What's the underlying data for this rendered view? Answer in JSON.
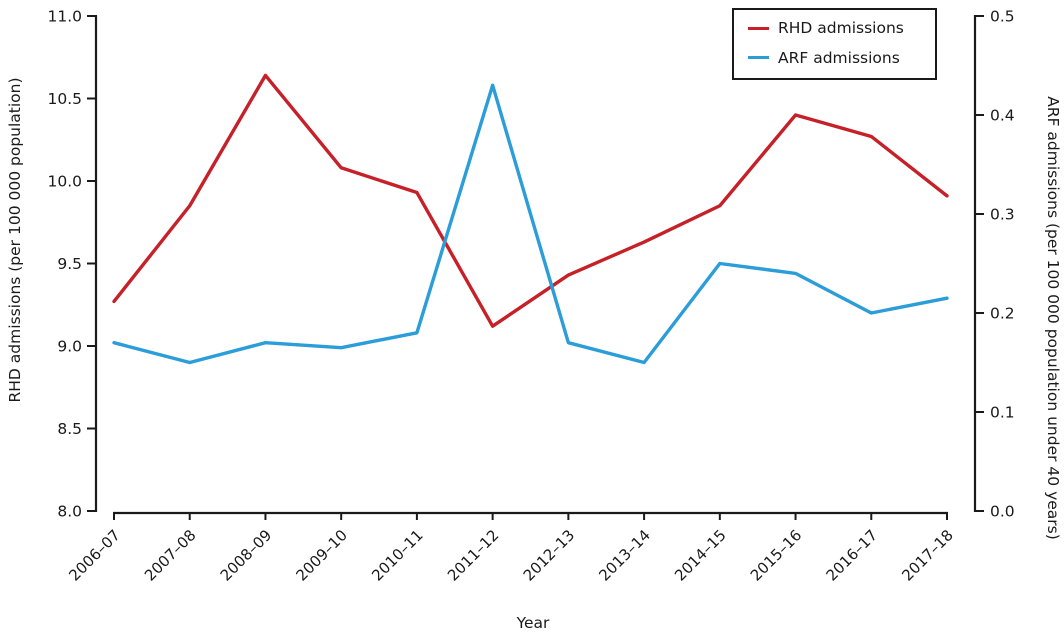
{
  "chart_data": {
    "type": "line",
    "title": "",
    "xlabel": "Year",
    "x": [
      "2006–07",
      "2007–08",
      "2008–09",
      "2009–10",
      "2010–11",
      "2011–12",
      "2012–13",
      "2013–14",
      "2014–15",
      "2015–16",
      "2016–17",
      "2017–18"
    ],
    "y_left": {
      "label": "RHD admissions (per 100 000 population)",
      "min": 8.0,
      "max": 11.0,
      "ticks": [
        8.0,
        8.5,
        9.0,
        9.5,
        10.0,
        10.5,
        11.0
      ],
      "tick_decimals": 1
    },
    "y_right": {
      "label": "ARF admissions (per 100 000 population under 40 years)",
      "min": 0.0,
      "max": 0.5,
      "ticks": [
        0.0,
        0.1,
        0.2,
        0.3,
        0.4,
        0.5
      ],
      "tick_decimals": 1
    },
    "series": [
      {
        "name": "RHD admissions",
        "axis": "left",
        "color": "#c62028",
        "values": [
          9.27,
          9.85,
          10.64,
          10.08,
          9.93,
          9.12,
          9.43,
          9.63,
          9.85,
          10.4,
          10.27,
          9.91
        ]
      },
      {
        "name": "ARF admissions",
        "axis": "right",
        "color": "#2b9dd8",
        "values": [
          0.17,
          0.15,
          0.17,
          0.165,
          0.18,
          0.43,
          0.17,
          0.15,
          0.25,
          0.24,
          0.2,
          0.215
        ]
      }
    ],
    "legend": {
      "position": "top-right",
      "border": true
    },
    "grid": false,
    "axis_color": "#1a1a1a"
  }
}
